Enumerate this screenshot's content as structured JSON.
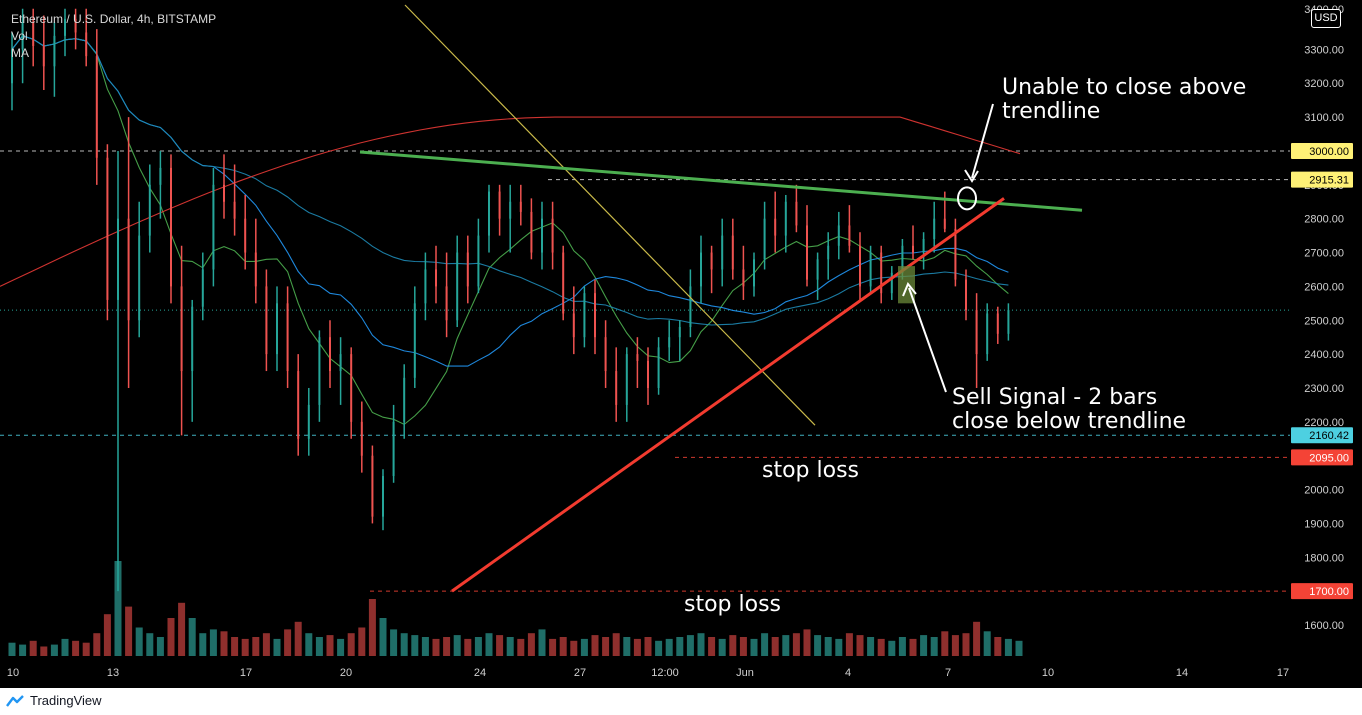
{
  "header": {
    "symbol_line": "Ethereum / U.S. Dollar, 4h, BITSTAMP",
    "vol_label": "Vol",
    "ma_label": "MA"
  },
  "currency_button": "USD",
  "footer": {
    "brand": "TradingView"
  },
  "colors": {
    "background": "#000000",
    "bull": "#26a69a",
    "bear": "#ef5350",
    "trend_green": "#4caf50",
    "trend_red": "#f23b2f",
    "trend_yellow": "#c9b94a",
    "ma_green": "#4caf50",
    "ma_blue": "#2196f3",
    "ma_red": "#e53935",
    "ma_cyan": "#1e88b4",
    "tag_yellow": "#fff176",
    "tag_cyan": "#4dd0e1",
    "tag_red": "#f44336"
  },
  "annotations": {
    "unable": "Unable to close above\ntrendline",
    "sell": "Sell Signal - 2 bars\nclose below trendline",
    "stop1": "stop loss",
    "stop2": "stop loss"
  },
  "chart_data": {
    "type": "candlestick",
    "title": "Ethereum / U.S. Dollar, 4h, BITSTAMP",
    "y_axis_ticks": [
      1600,
      1700,
      1800,
      1900,
      2000,
      2100,
      2200,
      2300,
      2400,
      2500,
      2600,
      2700,
      2800,
      2900,
      3000,
      3100,
      3200,
      3300
    ],
    "y_axis_labels": [
      "1600.00",
      "1700.00",
      "1800.00",
      "1900.00",
      "2000.00",
      "2100.00",
      "2200.00",
      "2300.00",
      "2400.00",
      "2500.00",
      "2600.00",
      "2700.00",
      "2800.00",
      "2900.00",
      "3000.00",
      "3100.00",
      "3200.00",
      "3300.00"
    ],
    "ylim": [
      1540,
      3430
    ],
    "x_axis_labels": [
      "10",
      "13",
      "17",
      "20",
      "24",
      "27",
      "12:00",
      "Jun",
      "4",
      "7",
      "10",
      "14",
      "17"
    ],
    "horizontal_levels": [
      {
        "label": "3000.00",
        "value": 3000,
        "color": "yellow"
      },
      {
        "label": "2915.31",
        "value": 2915.31,
        "color": "yellow"
      },
      {
        "label": "2160.42",
        "value": 2160.42,
        "color": "cyan"
      },
      {
        "label": "2095.00",
        "value": 2095,
        "color": "red"
      },
      {
        "label": "1700.00",
        "value": 1700,
        "color": "red"
      }
    ],
    "trendlines": [
      {
        "name": "resistance",
        "from": [
          "May 20",
          2997
        ],
        "to": [
          "Jun 10",
          2825
        ]
      },
      {
        "name": "support",
        "from": [
          "May 23",
          1700
        ],
        "to": [
          "Jun 8",
          2860
        ]
      },
      {
        "name": "downtrend",
        "from": [
          "May 18",
          3430
        ],
        "to": [
          "May 31",
          2190
        ]
      }
    ],
    "moving_averages": [
      "green",
      "blue",
      "red",
      "cyan"
    ],
    "candles": [
      [
        3200,
        3350,
        3120,
        3300
      ],
      [
        3300,
        3420,
        3200,
        3380
      ],
      [
        3380,
        3420,
        3250,
        3310
      ],
      [
        3310,
        3400,
        3180,
        3250
      ],
      [
        3250,
        3380,
        3160,
        3340
      ],
      [
        3340,
        3420,
        3280,
        3390
      ],
      [
        3390,
        3420,
        3300,
        3350
      ],
      [
        3350,
        3420,
        3250,
        3280
      ],
      [
        3280,
        3360,
        2900,
        2980
      ],
      [
        2980,
        3020,
        2500,
        2560
      ],
      [
        2560,
        3000,
        1700,
        2800
      ],
      [
        2800,
        3100,
        2300,
        2500
      ],
      [
        2500,
        2850,
        2450,
        2750
      ],
      [
        2750,
        2960,
        2700,
        2900
      ],
      [
        2900,
        3000,
        2800,
        2950
      ],
      [
        2950,
        2990,
        2550,
        2600
      ],
      [
        2600,
        2720,
        2160,
        2350
      ],
      [
        2350,
        2560,
        2200,
        2540
      ],
      [
        2540,
        2700,
        2500,
        2650
      ],
      [
        2650,
        2950,
        2600,
        2900
      ],
      [
        2900,
        2990,
        2800,
        2850
      ],
      [
        2850,
        2960,
        2750,
        2800
      ],
      [
        2800,
        2870,
        2650,
        2700
      ],
      [
        2700,
        2800,
        2550,
        2600
      ],
      [
        2600,
        2650,
        2350,
        2400
      ],
      [
        2400,
        2600,
        2350,
        2550
      ],
      [
        2550,
        2600,
        2300,
        2350
      ],
      [
        2350,
        2400,
        2100,
        2150
      ],
      [
        2150,
        2300,
        2100,
        2250
      ],
      [
        2250,
        2470,
        2200,
        2450
      ],
      [
        2450,
        2500,
        2300,
        2350
      ],
      [
        2350,
        2450,
        2250,
        2400
      ],
      [
        2400,
        2420,
        2150,
        2200
      ],
      [
        2200,
        2260,
        2050,
        2100
      ],
      [
        2100,
        2130,
        1900,
        1920
      ],
      [
        1920,
        2060,
        1880,
        2040
      ],
      [
        2040,
        2250,
        2020,
        2200
      ],
      [
        2200,
        2370,
        2150,
        2330
      ],
      [
        2330,
        2600,
        2300,
        2550
      ],
      [
        2550,
        2700,
        2500,
        2650
      ],
      [
        2650,
        2720,
        2550,
        2600
      ],
      [
        2600,
        2700,
        2450,
        2500
      ],
      [
        2500,
        2750,
        2480,
        2700
      ],
      [
        2700,
        2750,
        2550,
        2600
      ],
      [
        2600,
        2800,
        2580,
        2750
      ],
      [
        2750,
        2900,
        2700,
        2880
      ],
      [
        2880,
        2900,
        2750,
        2800
      ],
      [
        2800,
        2900,
        2700,
        2850
      ],
      [
        2850,
        2900,
        2780,
        2820
      ],
      [
        2820,
        2860,
        2680,
        2700
      ],
      [
        2700,
        2850,
        2650,
        2800
      ],
      [
        2800,
        2850,
        2650,
        2700
      ],
      [
        2700,
        2720,
        2500,
        2520
      ],
      [
        2520,
        2600,
        2400,
        2450
      ],
      [
        2450,
        2600,
        2420,
        2580
      ],
      [
        2580,
        2620,
        2400,
        2450
      ],
      [
        2450,
        2500,
        2300,
        2350
      ],
      [
        2350,
        2420,
        2200,
        2250
      ],
      [
        2250,
        2420,
        2200,
        2400
      ],
      [
        2400,
        2450,
        2300,
        2380
      ],
      [
        2380,
        2420,
        2250,
        2300
      ],
      [
        2300,
        2450,
        2280,
        2420
      ],
      [
        2420,
        2500,
        2380,
        2450
      ],
      [
        2450,
        2500,
        2380,
        2480
      ],
      [
        2480,
        2650,
        2450,
        2600
      ],
      [
        2600,
        2750,
        2550,
        2700
      ],
      [
        2700,
        2720,
        2580,
        2650
      ],
      [
        2650,
        2800,
        2600,
        2750
      ],
      [
        2750,
        2800,
        2620,
        2650
      ],
      [
        2650,
        2720,
        2560,
        2600
      ],
      [
        2600,
        2700,
        2570,
        2680
      ],
      [
        2680,
        2850,
        2650,
        2800
      ],
      [
        2800,
        2880,
        2700,
        2750
      ],
      [
        2750,
        2870,
        2700,
        2850
      ],
      [
        2850,
        2900,
        2760,
        2780
      ],
      [
        2780,
        2840,
        2600,
        2620
      ],
      [
        2620,
        2700,
        2560,
        2680
      ],
      [
        2680,
        2760,
        2620,
        2720
      ],
      [
        2720,
        2820,
        2680,
        2780
      ],
      [
        2780,
        2840,
        2700,
        2720
      ],
      [
        2720,
        2760,
        2560,
        2600
      ],
      [
        2600,
        2720,
        2580,
        2700
      ],
      [
        2700,
        2720,
        2550,
        2580
      ],
      [
        2580,
        2660,
        2560,
        2640
      ],
      [
        2640,
        2740,
        2620,
        2720
      ],
      [
        2720,
        2780,
        2680,
        2700
      ],
      [
        2700,
        2760,
        2650,
        2740
      ],
      [
        2740,
        2850,
        2700,
        2800
      ],
      [
        2800,
        2880,
        2760,
        2770
      ],
      [
        2770,
        2800,
        2600,
        2620
      ],
      [
        2620,
        2650,
        2500,
        2530
      ],
      [
        2530,
        2580,
        2300,
        2400
      ],
      [
        2400,
        2550,
        2380,
        2520
      ],
      [
        2520,
        2540,
        2430,
        2460
      ],
      [
        2460,
        2550,
        2440,
        2530
      ]
    ],
    "volume": [
      7,
      6,
      8,
      5,
      6,
      9,
      8,
      7,
      12,
      22,
      50,
      26,
      15,
      12,
      10,
      20,
      28,
      20,
      12,
      14,
      13,
      10,
      9,
      10,
      12,
      9,
      14,
      18,
      12,
      10,
      11,
      9,
      12,
      15,
      30,
      20,
      14,
      12,
      11,
      10,
      9,
      10,
      11,
      9,
      10,
      12,
      11,
      10,
      9,
      12,
      14,
      9,
      10,
      8,
      9,
      11,
      10,
      12,
      10,
      9,
      10,
      8,
      9,
      10,
      11,
      12,
      10,
      9,
      11,
      10,
      9,
      12,
      10,
      11,
      12,
      14,
      11,
      10,
      9,
      12,
      11,
      10,
      9,
      8,
      10,
      9,
      11,
      10,
      13,
      11,
      12,
      18,
      13,
      10,
      9,
      8
    ]
  }
}
